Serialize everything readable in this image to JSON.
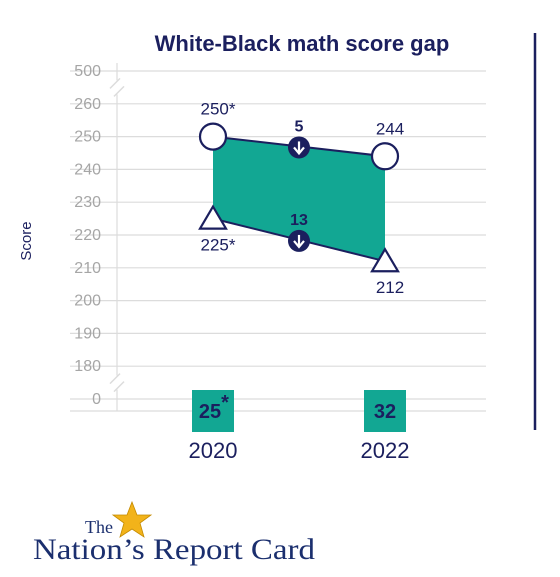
{
  "chart_data": {
    "type": "line",
    "title": "White-Black math score gap",
    "ylabel": "Score",
    "y_ticks": [
      "500",
      "260",
      "250",
      "240",
      "230",
      "220",
      "210",
      "200",
      "190",
      "180",
      "0"
    ],
    "categories": [
      "2020",
      "2022"
    ],
    "series": [
      {
        "values": [
          250,
          244
        ],
        "value_labels": [
          "250*",
          "244"
        ],
        "marker": "circle"
      },
      {
        "values": [
          225,
          212
        ],
        "value_labels": [
          "225*",
          "212"
        ],
        "marker": "triangle"
      }
    ],
    "segment_changes": [
      {
        "label": "5",
        "direction": "down"
      },
      {
        "label": "13",
        "direction": "down"
      }
    ],
    "gaps": [
      {
        "category": "2020",
        "value": 25,
        "label": "25",
        "significance": "*"
      },
      {
        "category": "2022",
        "value": 32,
        "label": "32",
        "significance": ""
      }
    ],
    "axis_breaks": [
      "between 500 and 260",
      "between 180 and 0"
    ],
    "grid": true,
    "colors": {
      "fill": "#12a793",
      "stroke": "#1b1f5e",
      "grid": "#dcdcdc",
      "tick_text": "#a6a6a6",
      "box": "#12a793"
    }
  },
  "logo": {
    "line1": "The",
    "line2": "Nation’s Report Card"
  }
}
